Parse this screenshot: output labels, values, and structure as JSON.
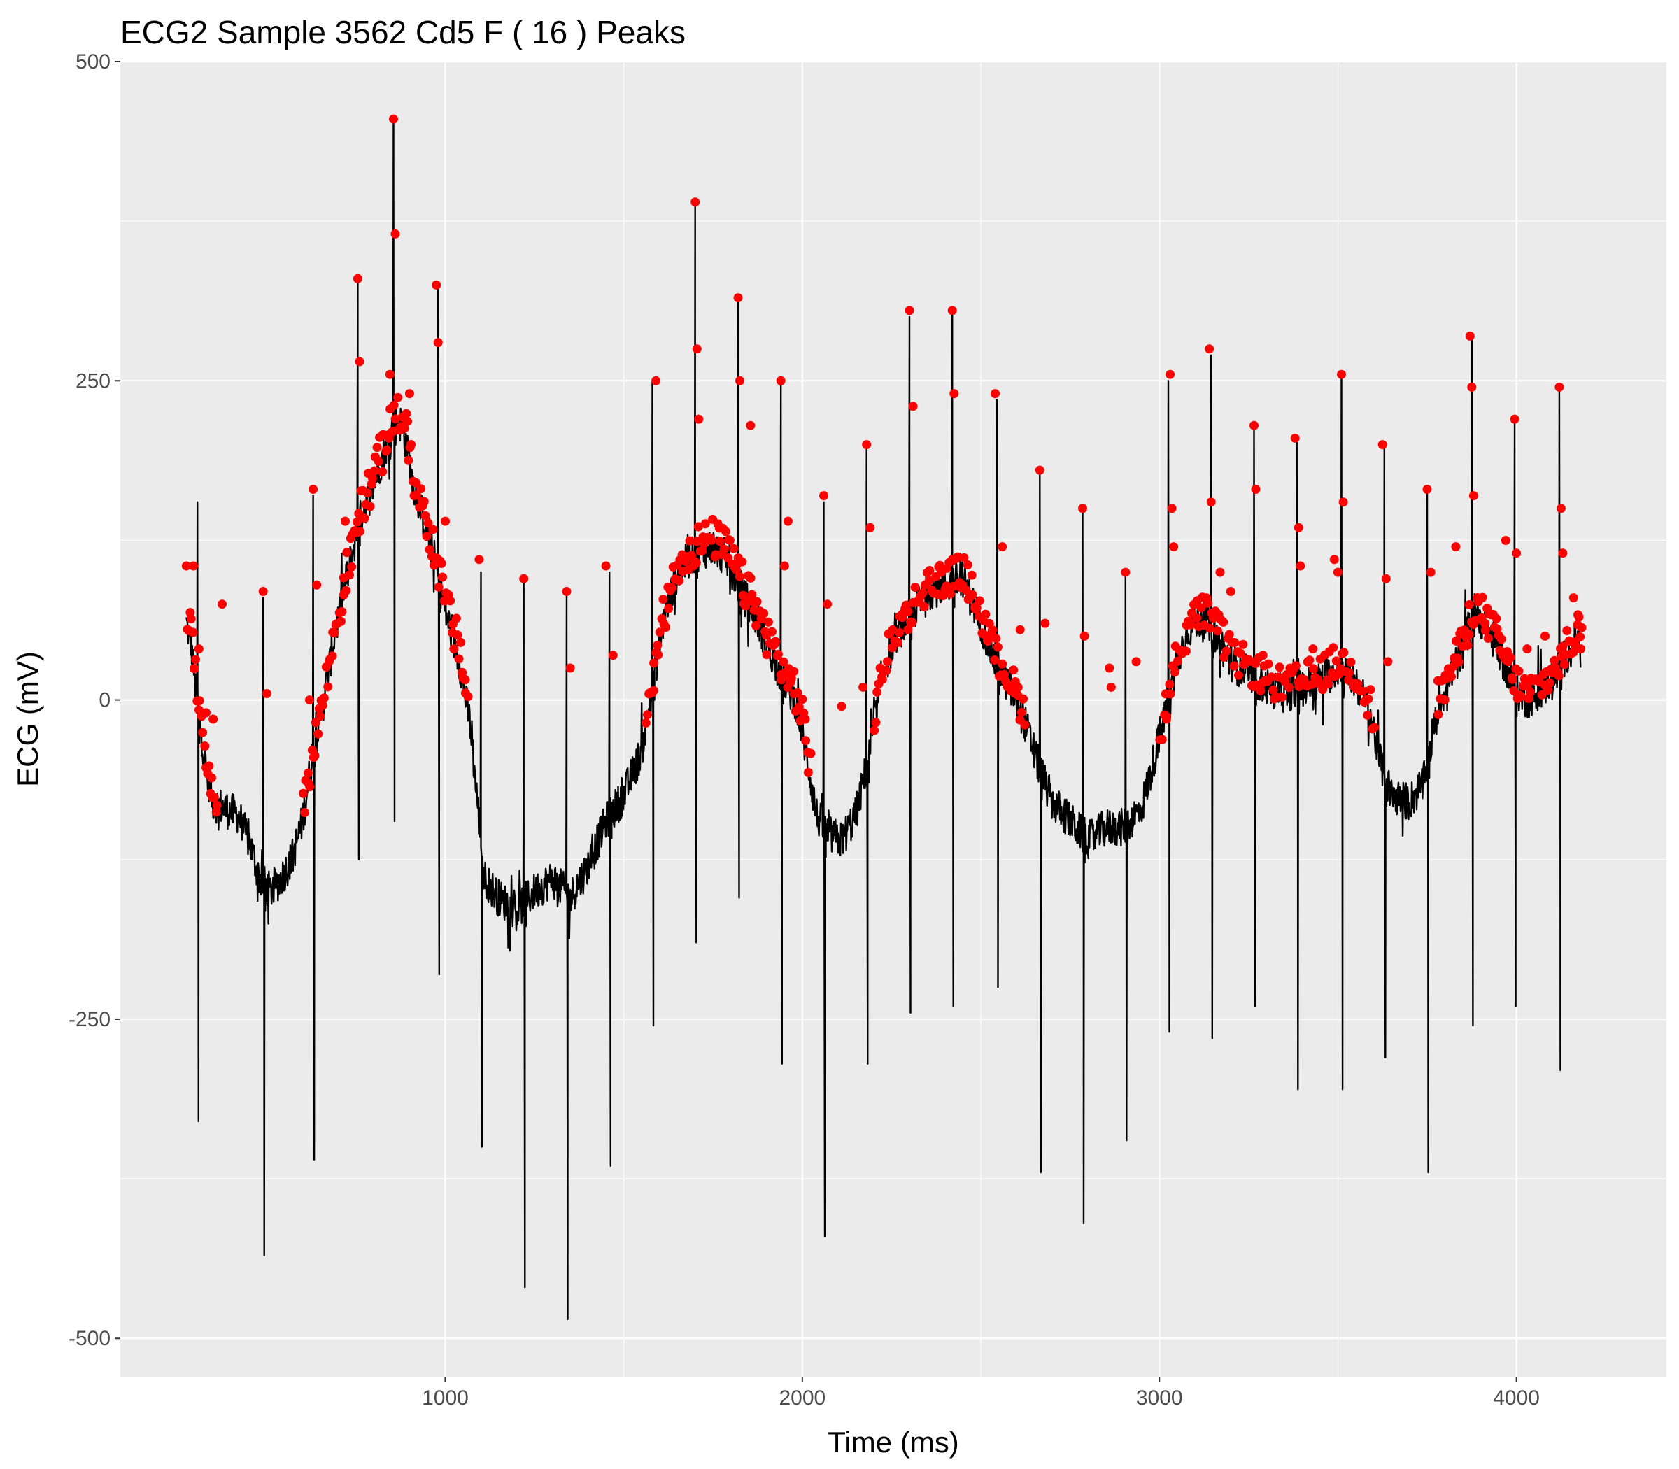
{
  "chart_data": {
    "type": "line",
    "title": "ECG2 Sample  3562 Cd5 F ( 16 ) Peaks",
    "xlabel": "Time (ms)",
    "ylabel": "ECG (mV)",
    "xlim": [
      90,
      4420
    ],
    "ylim": [
      -530,
      500
    ],
    "xticks": [
      1000,
      2000,
      3000,
      4000
    ],
    "xtick_labels": [
      "1000",
      "2000",
      "3000",
      "4000"
    ],
    "yticks": [
      -500,
      -250,
      0,
      250,
      500
    ],
    "ytick_labels": [
      "-500",
      "-250",
      "0",
      "250",
      "500"
    ],
    "grid": true,
    "legend": "none",
    "colors": {
      "panel": "#EBEBEB",
      "grid": "#FFFFFF",
      "line": "#000000",
      "points": "#FF0000"
    },
    "series": [
      {
        "type": "line",
        "baseline": [
          [
            275,
            60
          ],
          [
            290,
            40
          ],
          [
            300,
            10
          ],
          [
            315,
            -20
          ],
          [
            330,
            -55
          ],
          [
            350,
            -80
          ],
          [
            380,
            -85
          ],
          [
            420,
            -90
          ],
          [
            450,
            -110
          ],
          [
            480,
            -140
          ],
          [
            510,
            -150
          ],
          [
            540,
            -140
          ],
          [
            570,
            -125
          ],
          [
            600,
            -95
          ],
          [
            630,
            -40
          ],
          [
            660,
            0
          ],
          [
            690,
            50
          ],
          [
            720,
            90
          ],
          [
            760,
            140
          ],
          [
            800,
            170
          ],
          [
            830,
            195
          ],
          [
            860,
            220
          ],
          [
            880,
            215
          ],
          [
            910,
            170
          ],
          [
            940,
            140
          ],
          [
            970,
            110
          ],
          [
            1000,
            70
          ],
          [
            1040,
            30
          ],
          [
            1070,
            -20
          ],
          [
            1090,
            -80
          ],
          [
            1110,
            -140
          ],
          [
            1150,
            -155
          ],
          [
            1200,
            -165
          ],
          [
            1250,
            -150
          ],
          [
            1300,
            -140
          ],
          [
            1350,
            -155
          ],
          [
            1400,
            -130
          ],
          [
            1450,
            -95
          ],
          [
            1500,
            -75
          ],
          [
            1550,
            -40
          ],
          [
            1580,
            10
          ],
          [
            1610,
            60
          ],
          [
            1650,
            100
          ],
          [
            1700,
            115
          ],
          [
            1750,
            120
          ],
          [
            1790,
            110
          ],
          [
            1830,
            85
          ],
          [
            1870,
            65
          ],
          [
            1900,
            45
          ],
          [
            1940,
            20
          ],
          [
            1980,
            0
          ],
          [
            2010,
            -40
          ],
          [
            2040,
            -90
          ],
          [
            2070,
            -105
          ],
          [
            2110,
            -110
          ],
          [
            2150,
            -90
          ],
          [
            2190,
            -40
          ],
          [
            2220,
            15
          ],
          [
            2260,
            50
          ],
          [
            2300,
            65
          ],
          [
            2350,
            85
          ],
          [
            2400,
            90
          ],
          [
            2450,
            95
          ],
          [
            2500,
            60
          ],
          [
            2540,
            30
          ],
          [
            2580,
            10
          ],
          [
            2620,
            -15
          ],
          [
            2660,
            -50
          ],
          [
            2700,
            -80
          ],
          [
            2750,
            -95
          ],
          [
            2800,
            -110
          ],
          [
            2850,
            -100
          ],
          [
            2900,
            -100
          ],
          [
            2950,
            -85
          ],
          [
            3000,
            -30
          ],
          [
            3040,
            20
          ],
          [
            3080,
            55
          ],
          [
            3120,
            65
          ],
          [
            3160,
            50
          ],
          [
            3200,
            30
          ],
          [
            3250,
            20
          ],
          [
            3300,
            10
          ],
          [
            3350,
            5
          ],
          [
            3400,
            10
          ],
          [
            3450,
            15
          ],
          [
            3500,
            25
          ],
          [
            3550,
            15
          ],
          [
            3590,
            -10
          ],
          [
            3620,
            -50
          ],
          [
            3650,
            -75
          ],
          [
            3700,
            -80
          ],
          [
            3740,
            -65
          ],
          [
            3770,
            -20
          ],
          [
            3800,
            10
          ],
          [
            3850,
            40
          ],
          [
            3880,
            70
          ],
          [
            3910,
            60
          ],
          [
            3950,
            40
          ],
          [
            3990,
            10
          ],
          [
            4030,
            0
          ],
          [
            4080,
            10
          ],
          [
            4120,
            25
          ],
          [
            4160,
            45
          ],
          [
            4180,
            50
          ]
        ],
        "spikes": [
          {
            "x": 306,
            "high": 155,
            "low": -330
          },
          {
            "x": 490,
            "high": 80,
            "low": -435
          },
          {
            "x": 630,
            "high": 160,
            "low": -360
          },
          {
            "x": 755,
            "high": 330,
            "low": -125
          },
          {
            "x": 855,
            "high": 455,
            "low": -95
          },
          {
            "x": 980,
            "high": 325,
            "low": -215
          },
          {
            "x": 1100,
            "high": 100,
            "low": -350
          },
          {
            "x": 1220,
            "high": 95,
            "low": -460
          },
          {
            "x": 1340,
            "high": 85,
            "low": -485
          },
          {
            "x": 1460,
            "high": 100,
            "low": -365
          },
          {
            "x": 1580,
            "high": 250,
            "low": -255
          },
          {
            "x": 1700,
            "high": 390,
            "low": -190
          },
          {
            "x": 1820,
            "high": 315,
            "low": -155
          },
          {
            "x": 1940,
            "high": 250,
            "low": -285
          },
          {
            "x": 2060,
            "high": 155,
            "low": -420
          },
          {
            "x": 2180,
            "high": 200,
            "low": -285
          },
          {
            "x": 2300,
            "high": 300,
            "low": -245
          },
          {
            "x": 2420,
            "high": 305,
            "low": -240
          },
          {
            "x": 2545,
            "high": 235,
            "low": -225
          },
          {
            "x": 2665,
            "high": 180,
            "low": -370
          },
          {
            "x": 2785,
            "high": 150,
            "low": -410
          },
          {
            "x": 2905,
            "high": 100,
            "low": -345
          },
          {
            "x": 3025,
            "high": 250,
            "low": -260
          },
          {
            "x": 3145,
            "high": 270,
            "low": -265
          },
          {
            "x": 3265,
            "high": 215,
            "low": -240
          },
          {
            "x": 3385,
            "high": 205,
            "low": -305
          },
          {
            "x": 3510,
            "high": 255,
            "low": -305
          },
          {
            "x": 3630,
            "high": 200,
            "low": -280
          },
          {
            "x": 3750,
            "high": 165,
            "low": -370
          },
          {
            "x": 3875,
            "high": 285,
            "low": -255
          },
          {
            "x": 3995,
            "high": 220,
            "low": -240
          },
          {
            "x": 4120,
            "high": 245,
            "low": -290
          }
        ]
      },
      {
        "type": "points",
        "labelled_points": [
          [
            275,
            105
          ],
          [
            295,
            105
          ],
          [
            310,
            40
          ],
          [
            330,
            -10
          ],
          [
            350,
            -15
          ],
          [
            375,
            75
          ],
          [
            490,
            85
          ],
          [
            500,
            5
          ],
          [
            620,
            0
          ],
          [
            630,
            165
          ],
          [
            640,
            90
          ],
          [
            720,
            140
          ],
          [
            755,
            330
          ],
          [
            760,
            265
          ],
          [
            845,
            255
          ],
          [
            855,
            455
          ],
          [
            860,
            365
          ],
          [
            900,
            240
          ],
          [
            975,
            325
          ],
          [
            980,
            280
          ],
          [
            1000,
            140
          ],
          [
            1095,
            110
          ],
          [
            1220,
            95
          ],
          [
            1340,
            85
          ],
          [
            1350,
            25
          ],
          [
            1450,
            105
          ],
          [
            1470,
            35
          ],
          [
            1590,
            250
          ],
          [
            1700,
            390
          ],
          [
            1705,
            275
          ],
          [
            1710,
            220
          ],
          [
            1820,
            315
          ],
          [
            1825,
            250
          ],
          [
            1855,
            215
          ],
          [
            1940,
            250
          ],
          [
            1950,
            105
          ],
          [
            1960,
            140
          ],
          [
            2060,
            160
          ],
          [
            2070,
            75
          ],
          [
            2110,
            -5
          ],
          [
            2170,
            10
          ],
          [
            2180,
            200
          ],
          [
            2190,
            135
          ],
          [
            2300,
            305
          ],
          [
            2310,
            230
          ],
          [
            2420,
            305
          ],
          [
            2425,
            240
          ],
          [
            2540,
            240
          ],
          [
            2560,
            120
          ],
          [
            2610,
            55
          ],
          [
            2665,
            180
          ],
          [
            2680,
            60
          ],
          [
            2785,
            150
          ],
          [
            2790,
            50
          ],
          [
            2860,
            25
          ],
          [
            2865,
            10
          ],
          [
            2905,
            100
          ],
          [
            2935,
            30
          ],
          [
            3020,
            -15
          ],
          [
            3030,
            255
          ],
          [
            3035,
            150
          ],
          [
            3040,
            120
          ],
          [
            3140,
            275
          ],
          [
            3145,
            155
          ],
          [
            3170,
            100
          ],
          [
            3200,
            85
          ],
          [
            3265,
            215
          ],
          [
            3270,
            165
          ],
          [
            3290,
            35
          ],
          [
            3380,
            205
          ],
          [
            3390,
            135
          ],
          [
            3395,
            105
          ],
          [
            3430,
            40
          ],
          [
            3490,
            110
          ],
          [
            3500,
            100
          ],
          [
            3510,
            255
          ],
          [
            3515,
            155
          ],
          [
            3625,
            200
          ],
          [
            3635,
            95
          ],
          [
            3640,
            30
          ],
          [
            3750,
            165
          ],
          [
            3760,
            100
          ],
          [
            3780,
            15
          ],
          [
            3830,
            120
          ],
          [
            3870,
            285
          ],
          [
            3875,
            245
          ],
          [
            3880,
            160
          ],
          [
            3970,
            125
          ],
          [
            3995,
            220
          ],
          [
            4000,
            115
          ],
          [
            4030,
            40
          ],
          [
            4080,
            50
          ],
          [
            4120,
            245
          ],
          [
            4125,
            150
          ],
          [
            4130,
            115
          ],
          [
            4160,
            80
          ],
          [
            4175,
            65
          ],
          [
            4180,
            40
          ]
        ],
        "dense_runs": [
          {
            "from": 275,
            "to": 360,
            "step": 4,
            "jitter": 14
          },
          {
            "from": 600,
            "to": 1060,
            "step": 4,
            "jitter": 16
          },
          {
            "from": 1560,
            "to": 2020,
            "step": 4,
            "jitter": 16
          },
          {
            "from": 2200,
            "to": 2620,
            "step": 4,
            "jitter": 14
          },
          {
            "from": 3000,
            "to": 3600,
            "step": 5,
            "jitter": 14
          },
          {
            "from": 3780,
            "to": 4180,
            "step": 4,
            "jitter": 14
          }
        ]
      }
    ]
  }
}
